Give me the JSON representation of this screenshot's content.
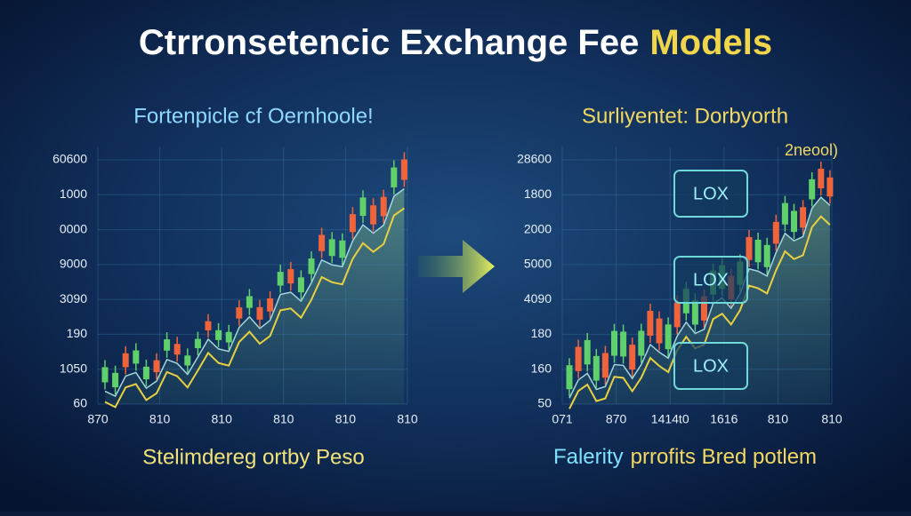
{
  "header": {
    "title": "Ctrronsetencic Exchange Fee",
    "title_highlight": "Models"
  },
  "left_panel": {
    "title": "Fortenpicle cf Oernhoole!",
    "y_labels": [
      "60600",
      "1000",
      "0000",
      "9000",
      "3090",
      "190",
      "1050",
      "60"
    ],
    "x_labels": [
      "870",
      "810",
      "810",
      "810",
      "810",
      "810"
    ],
    "caption": "Stelimdereg ortby Peso"
  },
  "right_panel": {
    "title": "Surliyentet: Dorbyorth",
    "annotation": "2neool)",
    "y_labels": [
      "28600",
      "1800",
      "2000",
      "5000",
      "4090",
      "180",
      "160",
      "50"
    ],
    "x_labels": [
      "071",
      "870",
      "1414t0",
      "1616",
      "810",
      "810"
    ],
    "boxes": [
      "LOX",
      "LOX",
      "LOX"
    ],
    "caption_lead": "Falerity",
    "caption": "prrofits Bred potlem"
  }
}
